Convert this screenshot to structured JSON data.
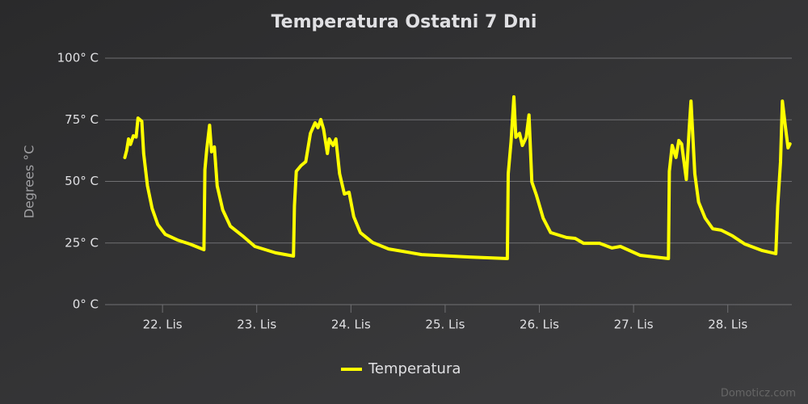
{
  "chart_data": {
    "type": "line",
    "title": "Temperatura Ostatni 7 Dni",
    "y_label": "Degrees °C",
    "credits": "Domoticz.com",
    "x": [
      21.6,
      21.62,
      21.64,
      21.66,
      21.69,
      21.72,
      21.74,
      21.78,
      21.8,
      21.84,
      21.89,
      21.95,
      22.03,
      22.16,
      22.29,
      22.44,
      22.45,
      22.47,
      22.5,
      22.52,
      22.55,
      22.58,
      22.64,
      22.72,
      22.85,
      22.98,
      23.2,
      23.39,
      23.4,
      23.42,
      23.47,
      23.52,
      23.57,
      23.62,
      23.65,
      23.68,
      23.71,
      23.75,
      23.77,
      23.81,
      23.84,
      23.88,
      23.93,
      23.98,
      24.03,
      24.1,
      24.23,
      24.4,
      24.75,
      25.26,
      25.66,
      25.67,
      25.7,
      25.73,
      25.75,
      25.79,
      25.82,
      25.86,
      25.89,
      25.92,
      25.97,
      26.04,
      26.12,
      26.29,
      26.38,
      26.47,
      26.64,
      26.77,
      26.86,
      27.07,
      27.37,
      27.38,
      27.41,
      27.45,
      27.48,
      27.51,
      27.56,
      27.59,
      27.61,
      27.65,
      27.69,
      27.76,
      27.84,
      27.93,
      28.05,
      28.18,
      28.36,
      28.51,
      28.53,
      28.56,
      28.58,
      28.61,
      28.64,
      28.66
    ],
    "series": [
      {
        "name": "Temperatura",
        "color": "#ffff00",
        "values": [
          59.7,
          62.6,
          67.2,
          65,
          68.5,
          68,
          75.7,
          74.4,
          61.3,
          48.2,
          39,
          32.5,
          28.5,
          26.2,
          24.6,
          22.3,
          54.8,
          63,
          72.8,
          62,
          64,
          48.2,
          38.4,
          31.8,
          27.9,
          23.6,
          21,
          19.7,
          40,
          54.1,
          56.4,
          58,
          69.5,
          73.8,
          71.8,
          75.1,
          71.1,
          61.3,
          67.2,
          64.6,
          67.2,
          53.1,
          44.9,
          45.6,
          35.7,
          29.2,
          25.2,
          22.6,
          20.3,
          19.3,
          18.7,
          53.1,
          66.2,
          84.3,
          67.9,
          69.5,
          64.6,
          67.9,
          77,
          49.8,
          44.3,
          35.1,
          29.2,
          27.2,
          26.9,
          24.9,
          24.9,
          23,
          23.6,
          20,
          18.7,
          54.1,
          64.6,
          59.7,
          66.6,
          65.2,
          50.8,
          71.1,
          82.6,
          53.1,
          41.6,
          35.1,
          30.8,
          30.2,
          27.9,
          24.6,
          22,
          20.7,
          40,
          58,
          82.6,
          72.8,
          63.6,
          65.2
        ]
      }
    ],
    "xlim": [
      21.39,
      28.68
    ],
    "xticks": [
      {
        "value": 22,
        "label": "22. Lis"
      },
      {
        "value": 23,
        "label": "23. Lis"
      },
      {
        "value": 24,
        "label": "24. Lis"
      },
      {
        "value": 25,
        "label": "25. Lis"
      },
      {
        "value": 26,
        "label": "26. Lis"
      },
      {
        "value": 27,
        "label": "27. Lis"
      },
      {
        "value": 28,
        "label": "28. Lis"
      }
    ],
    "ylim": [
      0,
      100
    ],
    "yticks": [
      {
        "value": 0,
        "label": "0° C"
      },
      {
        "value": 25,
        "label": "25° C"
      },
      {
        "value": 50,
        "label": "50° C"
      },
      {
        "value": 75,
        "label": "75° C"
      },
      {
        "value": 100,
        "label": "100° C"
      }
    ],
    "grid": true
  }
}
